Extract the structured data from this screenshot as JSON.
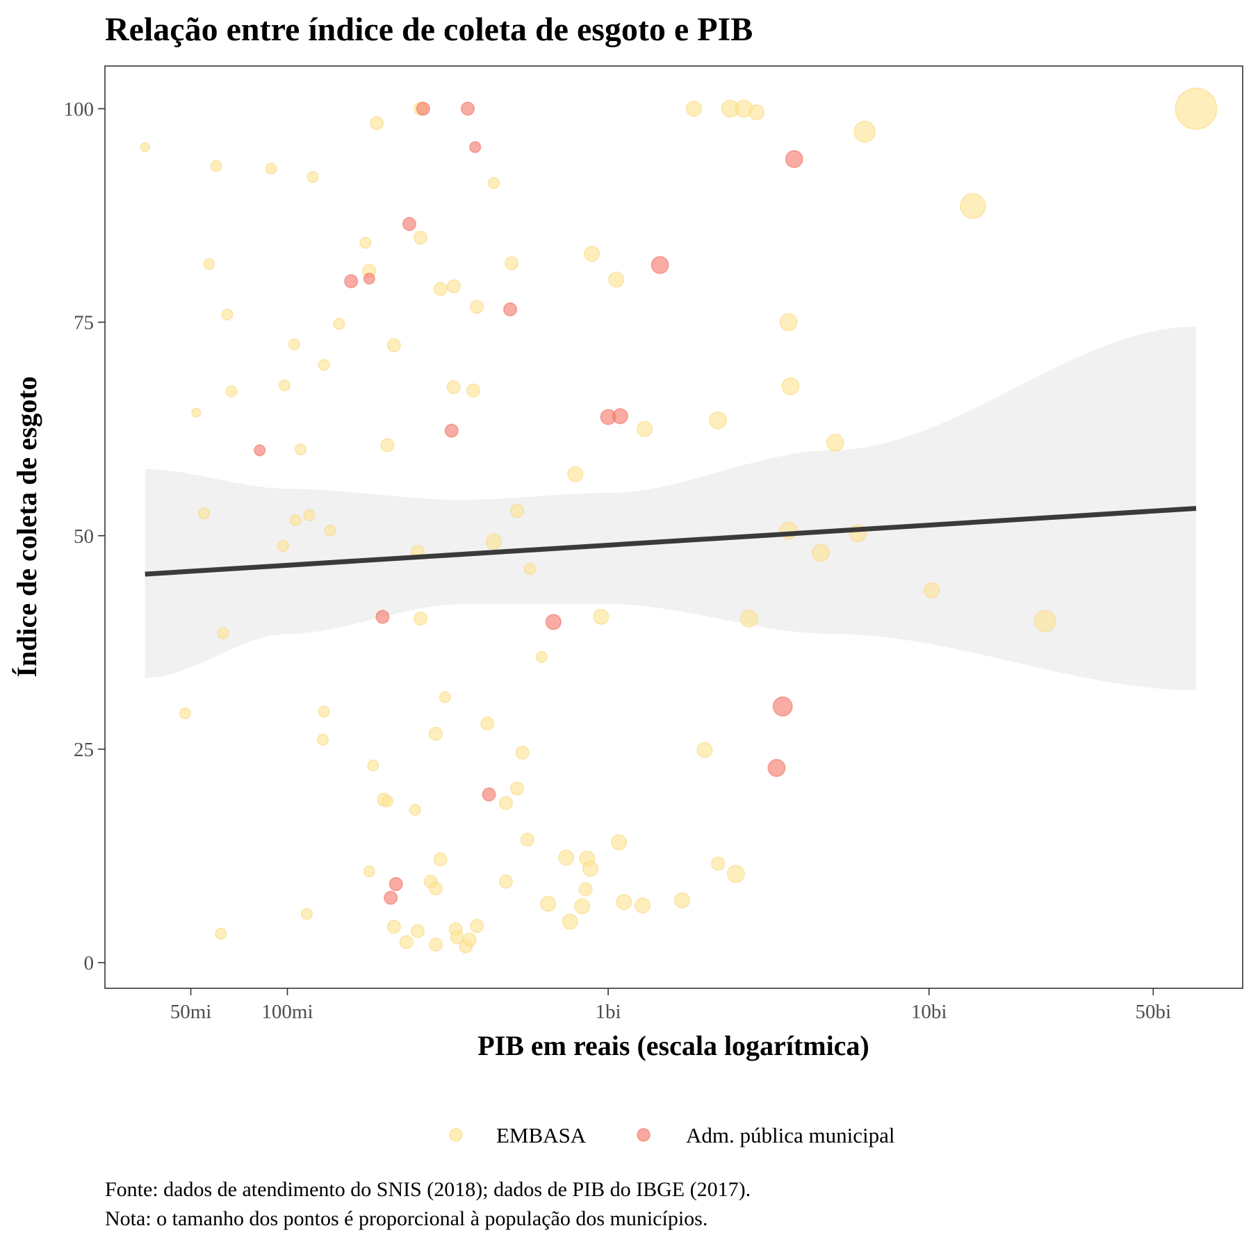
{
  "chart_data": {
    "type": "scatter",
    "title": "Relação entre índice de coleta de esgoto e PIB",
    "xlabel": "PIB em reais (escala logarítmica)",
    "ylabel": "Índice de coleta de esgoto",
    "x_scale": "log10",
    "xlim": [
      27000000,
      95000000000
    ],
    "ylim": [
      -3,
      105
    ],
    "x_ticks": [
      {
        "value": 50000000,
        "label": "50mi"
      },
      {
        "value": 100000000,
        "label": "100mi"
      },
      {
        "value": 1000000000,
        "label": "1bi"
      },
      {
        "value": 10000000000,
        "label": "10bi"
      },
      {
        "value": 50000000000,
        "label": "50bi"
      }
    ],
    "y_ticks": [
      {
        "value": 0,
        "label": "0"
      },
      {
        "value": 25,
        "label": "25"
      },
      {
        "value": 50,
        "label": "50"
      },
      {
        "value": 75,
        "label": "75"
      },
      {
        "value": 100,
        "label": "100"
      }
    ],
    "grid": false,
    "legend_position": "bottom",
    "colors": {
      "EMBASA": "#FEE391",
      "Adm. pública municipal": "#F4796A",
      "trend": "#3a3a3a",
      "ribbon": "#ebebeb"
    },
    "series": [
      {
        "name": "EMBASA",
        "points": [
          {
            "x": 36000000,
            "y": 95.5,
            "size": 1
          },
          {
            "x": 60000000,
            "y": 93.3,
            "size": 1.5
          },
          {
            "x": 89000000,
            "y": 93.0,
            "size": 1.5
          },
          {
            "x": 120000000,
            "y": 92.0,
            "size": 1.5
          },
          {
            "x": 190000000,
            "y": 98.3,
            "size": 2
          },
          {
            "x": 260000000,
            "y": 100,
            "size": 2
          },
          {
            "x": 440000000,
            "y": 91.3,
            "size": 1.5
          },
          {
            "x": 57000000,
            "y": 81.8,
            "size": 1.5
          },
          {
            "x": 65000000,
            "y": 75.9,
            "size": 1.5
          },
          {
            "x": 175000000,
            "y": 84.3,
            "size": 1.5
          },
          {
            "x": 180000000,
            "y": 81.0,
            "size": 2
          },
          {
            "x": 260000000,
            "y": 84.9,
            "size": 2
          },
          {
            "x": 300000000,
            "y": 78.9,
            "size": 2
          },
          {
            "x": 330000000,
            "y": 79.2,
            "size": 2
          },
          {
            "x": 390000000,
            "y": 76.8,
            "size": 2
          },
          {
            "x": 500000000,
            "y": 81.9,
            "size": 2
          },
          {
            "x": 890000000,
            "y": 83.0,
            "size": 2.5
          },
          {
            "x": 1060000000,
            "y": 80.0,
            "size": 2.5
          },
          {
            "x": 1850000000,
            "y": 100,
            "size": 2.5
          },
          {
            "x": 2400000000,
            "y": 100,
            "size": 3
          },
          {
            "x": 2650000000,
            "y": 100,
            "size": 3
          },
          {
            "x": 2900000000,
            "y": 99.6,
            "size": 2.5
          },
          {
            "x": 6300000000,
            "y": 97.3,
            "size": 4
          },
          {
            "x": 13700000000,
            "y": 88.6,
            "size": 5
          },
          {
            "x": 68000000000,
            "y": 100,
            "size": 9
          },
          {
            "x": 145000000,
            "y": 74.8,
            "size": 1.5
          },
          {
            "x": 105000000,
            "y": 72.4,
            "size": 1.5
          },
          {
            "x": 215000000,
            "y": 72.3,
            "size": 2
          },
          {
            "x": 130000000,
            "y": 70.0,
            "size": 1.5
          },
          {
            "x": 98000000,
            "y": 67.6,
            "size": 1.5
          },
          {
            "x": 67000000,
            "y": 66.9,
            "size": 1.5
          },
          {
            "x": 330000000,
            "y": 67.4,
            "size": 2
          },
          {
            "x": 380000000,
            "y": 67.0,
            "size": 2
          },
          {
            "x": 52000000,
            "y": 64.4,
            "size": 1
          },
          {
            "x": 110000000,
            "y": 60.1,
            "size": 1.5
          },
          {
            "x": 205000000,
            "y": 60.6,
            "size": 2
          },
          {
            "x": 1300000000,
            "y": 62.5,
            "size": 2.5
          },
          {
            "x": 2200000000,
            "y": 63.5,
            "size": 3
          },
          {
            "x": 3650000000,
            "y": 75.0,
            "size": 3
          },
          {
            "x": 3700000000,
            "y": 67.5,
            "size": 3
          },
          {
            "x": 5100000000,
            "y": 60.9,
            "size": 3
          },
          {
            "x": 790000000,
            "y": 57.2,
            "size": 2.5
          },
          {
            "x": 55000000,
            "y": 52.6,
            "size": 1.5
          },
          {
            "x": 106000000,
            "y": 51.8,
            "size": 1.5
          },
          {
            "x": 117000000,
            "y": 52.4,
            "size": 1.5
          },
          {
            "x": 136000000,
            "y": 50.6,
            "size": 1.5
          },
          {
            "x": 97000000,
            "y": 48.8,
            "size": 1.5
          },
          {
            "x": 255000000,
            "y": 48.1,
            "size": 2
          },
          {
            "x": 520000000,
            "y": 52.9,
            "size": 2
          },
          {
            "x": 440000000,
            "y": 49.3,
            "size": 2.5
          },
          {
            "x": 570000000,
            "y": 46.1,
            "size": 1.5
          },
          {
            "x": 3650000000,
            "y": 50.6,
            "size": 3
          },
          {
            "x": 4600000000,
            "y": 48.0,
            "size": 3
          },
          {
            "x": 6000000000,
            "y": 50.3,
            "size": 3
          },
          {
            "x": 10200000000,
            "y": 43.6,
            "size": 2.5
          },
          {
            "x": 23000000000,
            "y": 40.0,
            "size": 4
          },
          {
            "x": 63000000,
            "y": 38.6,
            "size": 1.5
          },
          {
            "x": 260000000,
            "y": 40.3,
            "size": 2
          },
          {
            "x": 620000000,
            "y": 35.8,
            "size": 1.5
          },
          {
            "x": 950000000,
            "y": 40.5,
            "size": 2.5
          },
          {
            "x": 2750000000,
            "y": 40.3,
            "size": 3
          },
          {
            "x": 48000000,
            "y": 29.2,
            "size": 1.5
          },
          {
            "x": 130000000,
            "y": 29.4,
            "size": 1.5
          },
          {
            "x": 129000000,
            "y": 26.1,
            "size": 1.5
          },
          {
            "x": 310000000,
            "y": 31.1,
            "size": 1.5
          },
          {
            "x": 290000000,
            "y": 26.8,
            "size": 2
          },
          {
            "x": 420000000,
            "y": 28.0,
            "size": 2
          },
          {
            "x": 540000000,
            "y": 24.6,
            "size": 2
          },
          {
            "x": 2000000000,
            "y": 24.9,
            "size": 2.5
          },
          {
            "x": 185000000,
            "y": 23.1,
            "size": 1.5
          },
          {
            "x": 200000000,
            "y": 19.1,
            "size": 2
          },
          {
            "x": 205000000,
            "y": 18.9,
            "size": 1.5
          },
          {
            "x": 250000000,
            "y": 17.9,
            "size": 1.5
          },
          {
            "x": 480000000,
            "y": 18.7,
            "size": 2
          },
          {
            "x": 520000000,
            "y": 20.4,
            "size": 2
          },
          {
            "x": 560000000,
            "y": 14.4,
            "size": 2
          },
          {
            "x": 1080000000,
            "y": 14.1,
            "size": 2.5
          },
          {
            "x": 180000000,
            "y": 10.7,
            "size": 1.5
          },
          {
            "x": 300000000,
            "y": 12.1,
            "size": 2
          },
          {
            "x": 280000000,
            "y": 9.5,
            "size": 2
          },
          {
            "x": 290000000,
            "y": 8.7,
            "size": 2
          },
          {
            "x": 480000000,
            "y": 9.5,
            "size": 2
          },
          {
            "x": 740000000,
            "y": 12.3,
            "size": 2.5
          },
          {
            "x": 860000000,
            "y": 12.2,
            "size": 2.5
          },
          {
            "x": 880000000,
            "y": 11.0,
            "size": 2.5
          },
          {
            "x": 850000000,
            "y": 8.6,
            "size": 2
          },
          {
            "x": 2200000000,
            "y": 11.6,
            "size": 2
          },
          {
            "x": 2500000000,
            "y": 10.4,
            "size": 3
          },
          {
            "x": 115000000,
            "y": 5.7,
            "size": 1.5
          },
          {
            "x": 62000000,
            "y": 3.4,
            "size": 1.5
          },
          {
            "x": 215000000,
            "y": 4.2,
            "size": 2
          },
          {
            "x": 235000000,
            "y": 2.4,
            "size": 2
          },
          {
            "x": 255000000,
            "y": 3.7,
            "size": 2
          },
          {
            "x": 290000000,
            "y": 2.1,
            "size": 2
          },
          {
            "x": 335000000,
            "y": 3.9,
            "size": 2
          },
          {
            "x": 338000000,
            "y": 3.0,
            "size": 2
          },
          {
            "x": 360000000,
            "y": 1.9,
            "size": 2
          },
          {
            "x": 370000000,
            "y": 2.7,
            "size": 2
          },
          {
            "x": 390000000,
            "y": 4.3,
            "size": 2
          },
          {
            "x": 650000000,
            "y": 6.9,
            "size": 2.5
          },
          {
            "x": 760000000,
            "y": 4.8,
            "size": 2.5
          },
          {
            "x": 830000000,
            "y": 6.6,
            "size": 2.5
          },
          {
            "x": 1120000000,
            "y": 7.1,
            "size": 2.5
          },
          {
            "x": 1280000000,
            "y": 6.7,
            "size": 2.5
          },
          {
            "x": 1700000000,
            "y": 7.3,
            "size": 2.5
          }
        ]
      },
      {
        "name": "Adm. pública municipal",
        "points": [
          {
            "x": 265000000,
            "y": 100,
            "size": 2
          },
          {
            "x": 365000000,
            "y": 100,
            "size": 2
          },
          {
            "x": 385000000,
            "y": 95.5,
            "size": 1.5
          },
          {
            "x": 3800000000,
            "y": 94.1,
            "size": 3
          },
          {
            "x": 240000000,
            "y": 86.5,
            "size": 2
          },
          {
            "x": 1450000000,
            "y": 81.7,
            "size": 3
          },
          {
            "x": 158000000,
            "y": 79.8,
            "size": 2
          },
          {
            "x": 180000000,
            "y": 80.1,
            "size": 1.5
          },
          {
            "x": 495000000,
            "y": 76.5,
            "size": 2
          },
          {
            "x": 325000000,
            "y": 62.3,
            "size": 2
          },
          {
            "x": 1000000000,
            "y": 63.9,
            "size": 2.5
          },
          {
            "x": 1090000000,
            "y": 64.0,
            "size": 2.5
          },
          {
            "x": 82000000,
            "y": 60.0,
            "size": 1.5
          },
          {
            "x": 198000000,
            "y": 40.5,
            "size": 2
          },
          {
            "x": 675000000,
            "y": 39.9,
            "size": 2.5
          },
          {
            "x": 3500000000,
            "y": 30.0,
            "size": 3.5
          },
          {
            "x": 3350000000,
            "y": 22.8,
            "size": 3
          },
          {
            "x": 425000000,
            "y": 19.7,
            "size": 2
          },
          {
            "x": 218000000,
            "y": 9.2,
            "size": 2
          },
          {
            "x": 210000000,
            "y": 7.6,
            "size": 2
          }
        ]
      }
    ],
    "trend": {
      "method": "lm",
      "x": [
        36000000,
        68000000000
      ],
      "y": [
        45.5,
        53.2
      ]
    },
    "ribbon": {
      "x": [
        36000000,
        100000000,
        350000000,
        1000000000,
        5000000000,
        68000000000
      ],
      "upper": [
        57.8,
        55.5,
        54.2,
        55.0,
        60.0,
        74.5
      ],
      "lower": [
        33.3,
        38.5,
        42.0,
        42.0,
        38.5,
        31.9
      ]
    },
    "legend": [
      {
        "label": "EMBASA",
        "color": "#FEE391"
      },
      {
        "label": "Adm. pública municipal",
        "color": "#F4796A"
      }
    ]
  },
  "caption": {
    "line1": "Fonte: dados de atendimento do SNIS (2018); dados de PIB do IBGE (2017).",
    "line2": "Nota: o tamanho dos pontos é proporcional à população dos municípios."
  }
}
